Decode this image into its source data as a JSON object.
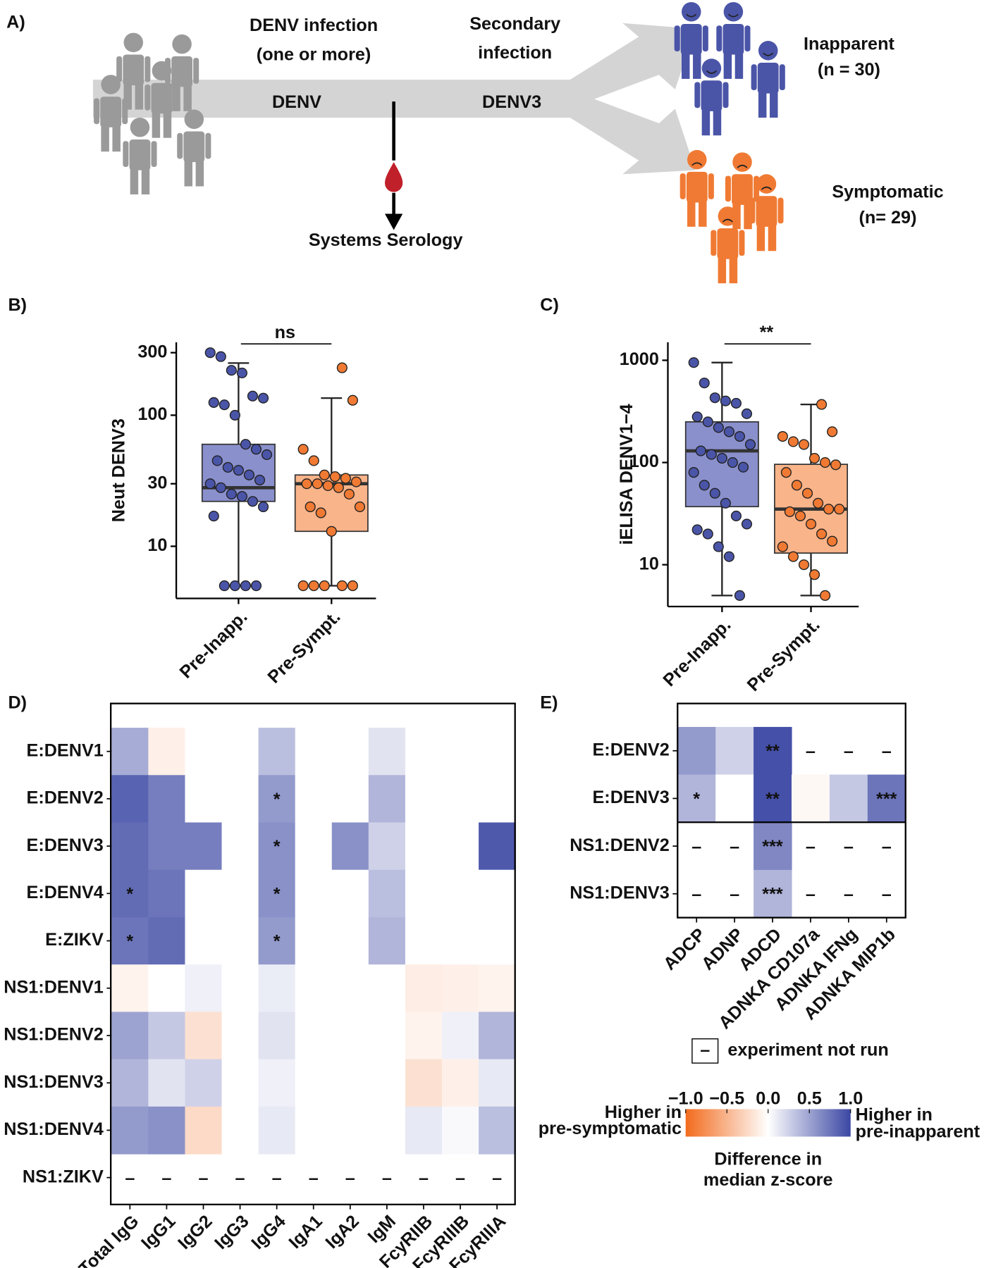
{
  "diagram": {
    "panel_label": "A)",
    "infection_label": [
      "DENV infection",
      "(one or more)"
    ],
    "secondary_label": [
      "Secondary",
      "infection"
    ],
    "stage1": "DENV",
    "stage2": "DENV3",
    "assay": "Systems Serology",
    "outcomes": [
      {
        "name": "Inapparent",
        "count_label": "(n = 30)",
        "color": "#4a55a8"
      },
      {
        "name": "Symptomatic",
        "count_label": "(n= 29)",
        "color": "#f07a33"
      }
    ]
  },
  "chart_data": [
    {
      "type": "box",
      "panel_label": "B)",
      "y_label": "Neut DENV3",
      "log_y": true,
      "ylim": [
        4,
        360
      ],
      "yticks": [
        10,
        30,
        100,
        300
      ],
      "significance": "ns",
      "groups": [
        {
          "name": "Pre-Inapp.",
          "color": "#4a55a8",
          "box_color": "#8a90cc",
          "whisker_low": 5,
          "q1": 22,
          "median": 28,
          "q3": 60,
          "whisker_high": 250,
          "points": [
            300,
            280,
            220,
            210,
            140,
            135,
            125,
            120,
            100,
            60,
            55,
            50,
            45,
            40,
            38,
            35,
            32,
            30,
            28,
            25,
            24,
            22,
            20,
            17,
            5,
            5,
            5,
            5
          ]
        },
        {
          "name": "Pre-Sympt.",
          "color": "#f07a33",
          "box_color": "#f9b48a",
          "whisker_low": 5,
          "q1": 13,
          "median": 30,
          "q3": 35,
          "whisker_high": 135,
          "points": [
            230,
            130,
            55,
            45,
            35,
            34,
            33,
            31,
            30,
            30,
            29,
            28,
            25,
            20,
            20,
            18,
            13,
            5,
            5,
            5,
            5,
            5
          ]
        }
      ]
    },
    {
      "type": "box",
      "panel_label": "C)",
      "y_label": "iELISA DENV1−4",
      "log_y": true,
      "ylim": [
        3.9,
        1500
      ],
      "yticks": [
        10,
        100,
        1000
      ],
      "significance": "**",
      "groups": [
        {
          "name": "Pre-Inapp.",
          "color": "#4a55a8",
          "box_color": "#8a90cc",
          "whisker_low": 5,
          "q1": 37,
          "median": 130,
          "q3": 250,
          "whisker_high": 950,
          "points": [
            950,
            600,
            430,
            400,
            380,
            300,
            280,
            250,
            220,
            200,
            180,
            150,
            130,
            120,
            110,
            100,
            90,
            80,
            60,
            50,
            40,
            30,
            25,
            22,
            20,
            15,
            12,
            5
          ]
        },
        {
          "name": "Pre-Sympt.",
          "color": "#f07a33",
          "box_color": "#f9b48a",
          "whisker_low": 5,
          "q1": 13,
          "median": 35,
          "q3": 96,
          "whisker_high": 370,
          "points": [
            370,
            200,
            180,
            160,
            150,
            110,
            100,
            95,
            80,
            60,
            50,
            40,
            35,
            35,
            33,
            30,
            25,
            20,
            17,
            15,
            12,
            10,
            8,
            5
          ]
        }
      ]
    },
    {
      "type": "heatmap",
      "panel_label": "D)",
      "rows": [
        "E:DENV1",
        "E:DENV2",
        "E:DENV3",
        "E:DENV4",
        "E:ZIKV",
        "NS1:DENV1",
        "NS1:DENV2",
        "NS1:DENV3",
        "NS1:DENV4",
        "NS1:ZIKV"
      ],
      "columns": [
        "Total IgG",
        "IgG1",
        "IgG2",
        "IgG3",
        "IgG4",
        "IgA1",
        "IgA2",
        "IgM",
        "FcyRIIB",
        "FcyRIIIB",
        "FcyRIIIA"
      ],
      "values": [
        [
          0.45,
          -0.1,
          0,
          0,
          0.35,
          0,
          0,
          0.15,
          0,
          0,
          0
        ],
        [
          0.85,
          0.7,
          0,
          0,
          0.55,
          0,
          0,
          0.4,
          0,
          0,
          0
        ],
        [
          0.8,
          0.7,
          0.7,
          0,
          0.6,
          0,
          0.6,
          0.25,
          0,
          0,
          0.9
        ],
        [
          0.8,
          0.75,
          0,
          0,
          0.6,
          0,
          0,
          0.35,
          0,
          0,
          0
        ],
        [
          0.75,
          0.8,
          0,
          0,
          0.55,
          0,
          0,
          0.4,
          0,
          0,
          0
        ],
        [
          -0.08,
          0,
          0.08,
          0,
          0.1,
          0,
          0,
          0,
          -0.12,
          -0.1,
          -0.08
        ],
        [
          0.5,
          0.3,
          -0.2,
          0,
          0.15,
          0,
          0,
          0,
          -0.08,
          0.08,
          0.4
        ],
        [
          0.4,
          0.15,
          0.25,
          0,
          0.08,
          0,
          0,
          0,
          -0.2,
          -0.1,
          0.12
        ],
        [
          0.55,
          0.6,
          -0.25,
          0,
          0.12,
          0,
          0,
          0,
          0.12,
          0.03,
          0.35
        ],
        [
          null,
          null,
          null,
          null,
          null,
          null,
          null,
          null,
          null,
          null,
          null
        ]
      ],
      "cell_labels": [
        [
          null,
          null,
          null,
          null,
          null,
          null,
          null,
          null,
          null,
          null,
          null
        ],
        [
          null,
          null,
          null,
          null,
          "*",
          null,
          null,
          null,
          null,
          null,
          null
        ],
        [
          null,
          null,
          null,
          null,
          "*",
          null,
          null,
          null,
          null,
          null,
          null
        ],
        [
          "*",
          null,
          null,
          null,
          "*",
          null,
          null,
          null,
          null,
          null,
          null
        ],
        [
          "*",
          null,
          null,
          null,
          "*",
          null,
          null,
          null,
          null,
          null,
          null
        ],
        [
          null,
          null,
          null,
          null,
          null,
          null,
          null,
          null,
          null,
          null,
          null
        ],
        [
          null,
          null,
          null,
          null,
          null,
          null,
          null,
          null,
          null,
          null,
          null
        ],
        [
          null,
          null,
          null,
          null,
          null,
          null,
          null,
          null,
          null,
          null,
          null
        ],
        [
          null,
          null,
          null,
          null,
          null,
          null,
          null,
          null,
          null,
          null,
          null
        ],
        [
          "–",
          "–",
          "–",
          "–",
          "–",
          "–",
          "–",
          "–",
          "–",
          "–",
          "–"
        ]
      ]
    },
    {
      "type": "heatmap",
      "panel_label": "E)",
      "rows": [
        "E:DENV2",
        "E:DENV3",
        "NS1:DENV2",
        "NS1:DENV3"
      ],
      "columns": [
        "ADCP",
        "ADNP",
        "ADCD",
        "ADNKA CD107a",
        "ADNKA IFNg",
        "ADNKA MIP1b"
      ],
      "values": [
        [
          0.55,
          0.25,
          0.95,
          null,
          null,
          null
        ],
        [
          0.4,
          0,
          0.95,
          -0.05,
          0.3,
          0.75
        ],
        [
          null,
          null,
          0.65,
          null,
          null,
          null
        ],
        [
          null,
          null,
          0.4,
          null,
          null,
          null
        ]
      ],
      "cell_labels": [
        [
          null,
          null,
          "**",
          "–",
          "–",
          "–"
        ],
        [
          "*",
          null,
          "**",
          null,
          null,
          "***"
        ],
        [
          "–",
          "–",
          "***",
          "–",
          "–",
          "–"
        ],
        [
          "–",
          "–",
          "***",
          "–",
          "–",
          "–"
        ]
      ],
      "not_run_note": {
        "symbol": "–",
        "label": "experiment not run"
      },
      "colorbar": {
        "lim": [
          -1,
          1
        ],
        "color_low": "#f26b1d",
        "color_mid": "#ffffff",
        "color_high": "#3b47a3",
        "ticks": [
          {
            "value": -1,
            "label": "−1.0"
          },
          {
            "value": -0.5,
            "label": "−0.5"
          },
          {
            "value": 0,
            "label": "0.0"
          },
          {
            "value": 0.5,
            "label": "0.5"
          },
          {
            "value": 1,
            "label": "1.0"
          }
        ],
        "title": [
          "Difference in",
          "median z-score"
        ],
        "low_label": [
          "Higher in",
          "pre-symptomatic"
        ],
        "low_color": "#e8401c",
        "high_label": [
          "Higher in",
          "pre-inapparent"
        ],
        "high_color": "#4a55a8"
      }
    }
  ]
}
